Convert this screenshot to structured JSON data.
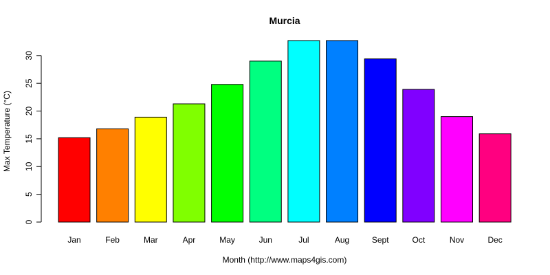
{
  "chart_data": {
    "type": "bar",
    "title": "Murcia",
    "xlabel": "Month (http://www.maps4gis.com)",
    "ylabel": "Max Temperature (°C)",
    "categories": [
      "Jan",
      "Feb",
      "Mar",
      "Apr",
      "May",
      "Jun",
      "Jul",
      "Aug",
      "Sept",
      "Oct",
      "Nov",
      "Dec"
    ],
    "values": [
      15.2,
      16.8,
      18.9,
      21.3,
      24.8,
      29.0,
      32.7,
      32.7,
      29.4,
      23.9,
      19.0,
      15.9
    ],
    "colors": [
      "#FF0000",
      "#FF8000",
      "#FFFF00",
      "#80FF00",
      "#00FF00",
      "#00FF80",
      "#00FFFF",
      "#0080FF",
      "#0000FF",
      "#8000FF",
      "#FF00FF",
      "#FF0080"
    ],
    "ylim": [
      0,
      32.7
    ],
    "yticks": [
      0,
      5,
      10,
      15,
      20,
      25,
      30
    ],
    "grid": false,
    "legend": "none"
  }
}
